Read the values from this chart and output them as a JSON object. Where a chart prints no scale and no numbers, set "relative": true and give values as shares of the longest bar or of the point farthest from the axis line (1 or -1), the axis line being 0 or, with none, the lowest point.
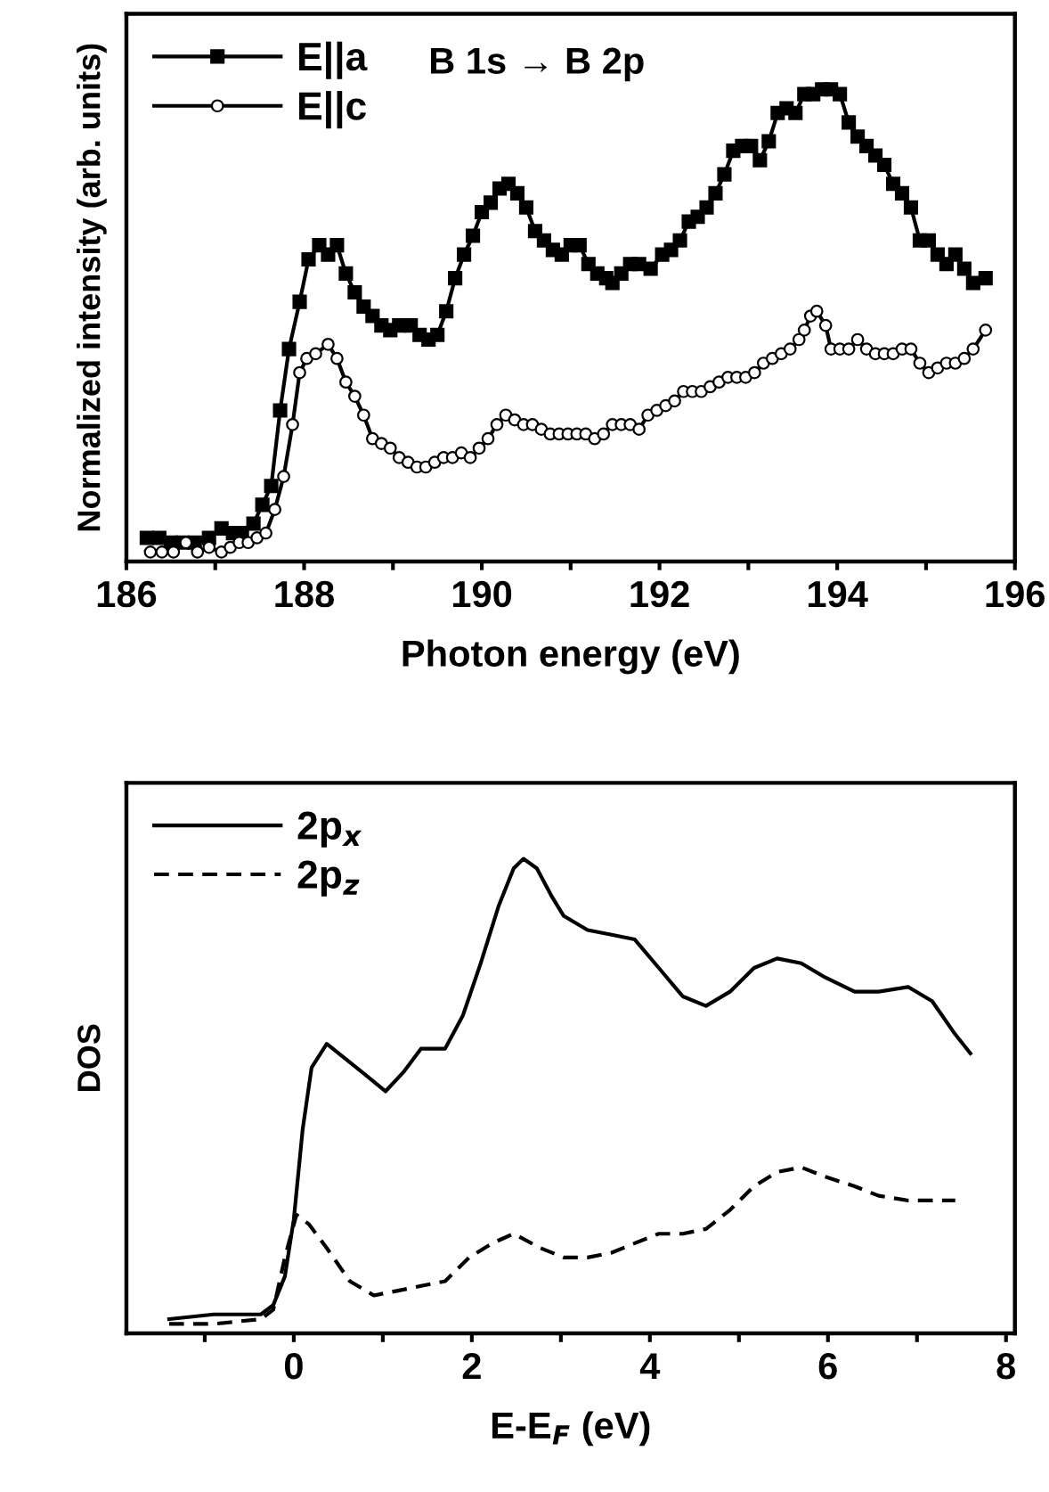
{
  "chart_data": [
    {
      "type": "line",
      "relative": true,
      "xlabel": "Photon energy (eV)",
      "ylabel": "Normalized intensity (arb. units)",
      "annotations": [
        "B 1s → B 2p"
      ],
      "xlim": [
        186,
        196
      ],
      "xticks": [
        186,
        {
          "value": 187,
          "label": null
        },
        188,
        {
          "value": 189,
          "label": null
        },
        190,
        {
          "value": 191,
          "label": null
        },
        192,
        {
          "value": 193,
          "label": null
        },
        194,
        {
          "value": 195,
          "label": null
        },
        196
      ],
      "tick_labels": "x",
      "legend": "top left",
      "line_style": "solid",
      "series": [
        {
          "name": "E||a",
          "color": "#000000",
          "marker": "square",
          "x": [
            186.23,
            186.37,
            186.5,
            186.63,
            186.77,
            186.93,
            187.07,
            187.2,
            187.3,
            187.43,
            187.53,
            187.63,
            187.73,
            187.83,
            187.95,
            188.05,
            188.17,
            188.27,
            188.37,
            188.47,
            188.57,
            188.67,
            188.77,
            188.87,
            188.97,
            189.07,
            189.2,
            189.3,
            189.4,
            189.5,
            189.6,
            189.7,
            189.8,
            189.9,
            190.0,
            190.1,
            190.2,
            190.3,
            190.4,
            190.5,
            190.6,
            190.7,
            190.8,
            190.9,
            191.0,
            191.1,
            191.2,
            191.3,
            191.4,
            191.47,
            191.57,
            191.67,
            191.77,
            191.9,
            192.03,
            192.13,
            192.23,
            192.33,
            192.43,
            192.53,
            192.63,
            192.73,
            192.83,
            192.93,
            193.03,
            193.13,
            193.23,
            193.33,
            193.43,
            193.53,
            193.63,
            193.73,
            193.83,
            193.93,
            194.03,
            194.13,
            194.23,
            194.33,
            194.43,
            194.53,
            194.63,
            194.73,
            194.83,
            194.93,
            195.03,
            195.13,
            195.23,
            195.33,
            195.43,
            195.53,
            195.67
          ],
          "values": [
            0.05,
            0.05,
            0.04,
            0.04,
            0.04,
            0.05,
            0.07,
            0.06,
            0.06,
            0.08,
            0.12,
            0.16,
            0.32,
            0.45,
            0.55,
            0.64,
            0.67,
            0.65,
            0.67,
            0.61,
            0.57,
            0.54,
            0.52,
            0.5,
            0.49,
            0.5,
            0.5,
            0.48,
            0.47,
            0.48,
            0.53,
            0.6,
            0.65,
            0.69,
            0.74,
            0.76,
            0.79,
            0.8,
            0.78,
            0.75,
            0.7,
            0.68,
            0.66,
            0.65,
            0.67,
            0.67,
            0.63,
            0.61,
            0.6,
            0.59,
            0.61,
            0.63,
            0.63,
            0.62,
            0.65,
            0.66,
            0.68,
            0.72,
            0.73,
            0.75,
            0.78,
            0.82,
            0.87,
            0.88,
            0.88,
            0.85,
            0.89,
            0.95,
            0.96,
            0.95,
            0.99,
            0.99,
            1.0,
            1.0,
            0.99,
            0.93,
            0.9,
            0.88,
            0.86,
            0.84,
            0.8,
            0.78,
            0.75,
            0.68,
            0.68,
            0.65,
            0.63,
            0.65,
            0.62,
            0.59,
            0.6
          ]
        },
        {
          "name": "E||c",
          "color": "#000000",
          "marker": "circle",
          "x": [
            186.27,
            186.4,
            186.53,
            186.67,
            186.8,
            186.93,
            187.07,
            187.17,
            187.27,
            187.37,
            187.47,
            187.57,
            187.67,
            187.77,
            187.87,
            187.95,
            188.03,
            188.13,
            188.27,
            188.37,
            188.47,
            188.57,
            188.67,
            188.77,
            188.87,
            188.97,
            189.07,
            189.17,
            189.27,
            189.37,
            189.47,
            189.57,
            189.67,
            189.77,
            189.87,
            189.97,
            190.07,
            190.17,
            190.27,
            190.37,
            190.47,
            190.57,
            190.67,
            190.77,
            190.87,
            190.97,
            191.07,
            191.17,
            191.27,
            191.37,
            191.47,
            191.57,
            191.67,
            191.77,
            191.87,
            191.97,
            192.07,
            192.17,
            192.27,
            192.37,
            192.47,
            192.57,
            192.67,
            192.77,
            192.87,
            192.97,
            193.07,
            193.17,
            193.27,
            193.37,
            193.47,
            193.57,
            193.63,
            193.7,
            193.77,
            193.87,
            193.93,
            194.03,
            194.13,
            194.23,
            194.33,
            194.43,
            194.53,
            194.63,
            194.73,
            194.83,
            194.93,
            195.03,
            195.13,
            195.23,
            195.33,
            195.43,
            195.53,
            195.67
          ],
          "values": [
            0.02,
            0.02,
            0.02,
            0.04,
            0.02,
            0.03,
            0.02,
            0.03,
            0.04,
            0.04,
            0.05,
            0.06,
            0.11,
            0.18,
            0.29,
            0.4,
            0.43,
            0.44,
            0.46,
            0.43,
            0.38,
            0.35,
            0.31,
            0.26,
            0.25,
            0.24,
            0.22,
            0.21,
            0.2,
            0.2,
            0.21,
            0.22,
            0.22,
            0.23,
            0.22,
            0.24,
            0.26,
            0.29,
            0.31,
            0.3,
            0.29,
            0.29,
            0.28,
            0.27,
            0.27,
            0.27,
            0.27,
            0.27,
            0.26,
            0.27,
            0.29,
            0.29,
            0.29,
            0.28,
            0.31,
            0.32,
            0.33,
            0.34,
            0.36,
            0.36,
            0.36,
            0.37,
            0.38,
            0.39,
            0.39,
            0.39,
            0.4,
            0.42,
            0.43,
            0.44,
            0.45,
            0.47,
            0.49,
            0.52,
            0.53,
            0.5,
            0.45,
            0.45,
            0.45,
            0.47,
            0.45,
            0.44,
            0.44,
            0.44,
            0.45,
            0.45,
            0.42,
            0.4,
            0.41,
            0.42,
            0.42,
            0.43,
            0.45,
            0.49
          ]
        }
      ]
    },
    {
      "type": "line",
      "relative": true,
      "xlabel": "E-E$_{F}$ (eV)",
      "ylabel": "DOS",
      "xlim": [
        -1.88,
        8.1
      ],
      "xticks": [
        {
          "value": -1,
          "label": null
        },
        0,
        {
          "value": 1,
          "label": null
        },
        2,
        {
          "value": 3,
          "label": null
        },
        4,
        {
          "value": 5,
          "label": null
        },
        6,
        {
          "value": 7,
          "label": null
        },
        8
      ],
      "tick_labels": "x",
      "legend": "top left",
      "marker": "none",
      "series": [
        {
          "name": "2p$_{x}$",
          "color": "#000000",
          "line_style": "solid",
          "x": [
            -1.4,
            -0.9,
            -0.37,
            -0.23,
            -0.1,
            0,
            0.1,
            0.2,
            0.37,
            0.57,
            0.77,
            1.03,
            1.23,
            1.43,
            1.7,
            1.9,
            2.1,
            2.3,
            2.47,
            2.58,
            2.73,
            2.9,
            3.03,
            3.3,
            3.57,
            3.83,
            4.1,
            4.37,
            4.63,
            4.9,
            5.17,
            5.43,
            5.7,
            5.97,
            6.3,
            6.57,
            6.9,
            7.17,
            7.43,
            7.6
          ],
          "values": [
            0.03,
            0.04,
            0.04,
            0.06,
            0.12,
            0.24,
            0.43,
            0.56,
            0.61,
            0.58,
            0.55,
            0.51,
            0.55,
            0.6,
            0.6,
            0.67,
            0.78,
            0.9,
            0.98,
            1.0,
            0.98,
            0.92,
            0.88,
            0.85,
            0.84,
            0.83,
            0.77,
            0.71,
            0.69,
            0.72,
            0.77,
            0.79,
            0.78,
            0.75,
            0.72,
            0.72,
            0.73,
            0.7,
            0.63,
            0.59
          ]
        },
        {
          "name": "2p$_{z}$",
          "color": "#000000",
          "line_style": "dashed",
          "x": [
            -1.4,
            -0.9,
            -0.37,
            -0.23,
            -0.1,
            0.03,
            0.17,
            0.37,
            0.63,
            0.9,
            1.17,
            1.43,
            1.7,
            1.97,
            2.23,
            2.47,
            2.77,
            3.03,
            3.3,
            3.57,
            3.83,
            4.1,
            4.37,
            4.63,
            4.9,
            5.17,
            5.43,
            5.7,
            5.97,
            6.3,
            6.57,
            6.9,
            7.17,
            7.43
          ],
          "values": [
            0.02,
            0.02,
            0.03,
            0.05,
            0.16,
            0.25,
            0.23,
            0.18,
            0.11,
            0.08,
            0.09,
            0.1,
            0.11,
            0.16,
            0.19,
            0.21,
            0.18,
            0.16,
            0.16,
            0.17,
            0.19,
            0.21,
            0.21,
            0.22,
            0.26,
            0.31,
            0.34,
            0.35,
            0.33,
            0.31,
            0.29,
            0.28,
            0.28,
            0.28
          ]
        }
      ]
    }
  ]
}
